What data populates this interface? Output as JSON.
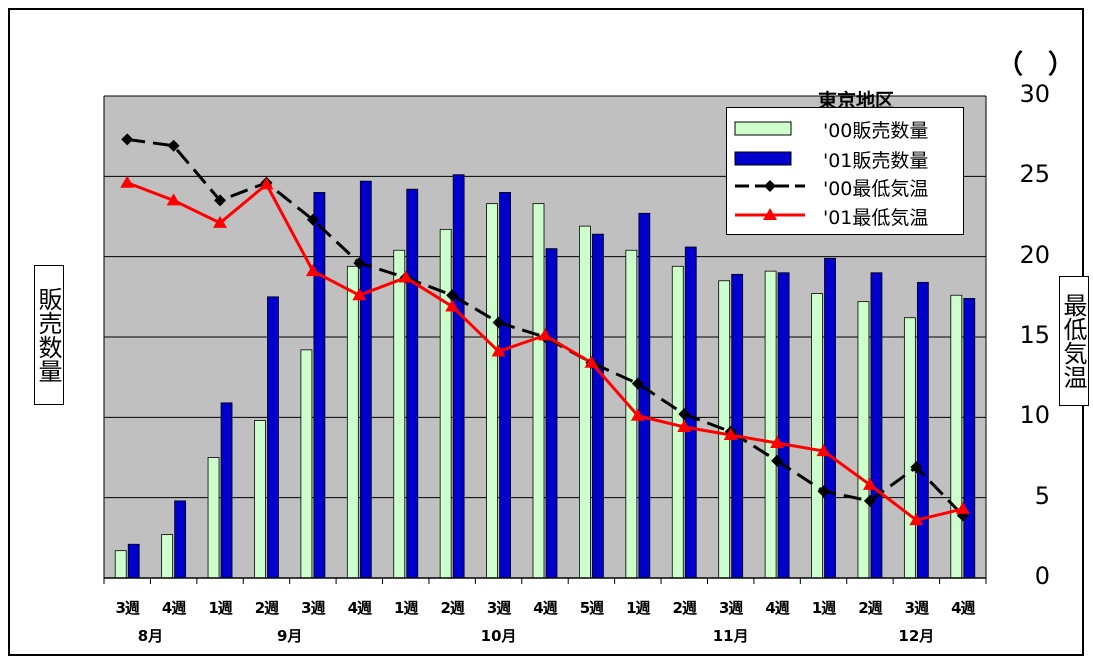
{
  "chart_data": {
    "type": "bar",
    "region_label": "東京地区",
    "unit_parens": "（ ）",
    "y_left_label": "販売数量",
    "y_right_label": "最低気温",
    "y_right_ticks": [
      "0",
      "5",
      "10",
      "15",
      "20",
      "25",
      "30"
    ],
    "ylim_right": [
      0,
      30
    ],
    "grid": true,
    "legend_position": "top-right",
    "categories": [
      "3週",
      "4週",
      "1週",
      "2週",
      "3週",
      "4週",
      "1週",
      "2週",
      "3週",
      "4週",
      "5週",
      "1週",
      "2週",
      "3週",
      "4週",
      "1週",
      "2週",
      "3週",
      "4週"
    ],
    "months": [
      {
        "label": "8月",
        "center_index": 0.5
      },
      {
        "label": "9月",
        "center_index": 3.5
      },
      {
        "label": "10月",
        "center_index": 8
      },
      {
        "label": "11月",
        "center_index": 13
      },
      {
        "label": "12月",
        "center_index": 17
      }
    ],
    "bar_scale_note": "",
    "series": [
      {
        "name": "'00販売数量",
        "kind": "bar",
        "color": "#ccffcc",
        "values": [
          1.7,
          2.7,
          7.5,
          9.8,
          14.2,
          19.4,
          20.4,
          21.7,
          23.3,
          23.3,
          21.9,
          20.4,
          19.4,
          18.5,
          19.1,
          17.7,
          17.2,
          16.2,
          17.6
        ]
      },
      {
        "name": "'01販売数量",
        "kind": "bar",
        "color": "#0000cc",
        "values": [
          2.1,
          4.8,
          10.9,
          17.5,
          24.0,
          24.7,
          24.2,
          25.1,
          24.0,
          20.5,
          21.4,
          22.7,
          20.6,
          18.9,
          19.0,
          19.9,
          19.0,
          18.4,
          17.4
        ]
      },
      {
        "name": "'00最低気温",
        "kind": "line",
        "color": "#000000",
        "marker": "diamond",
        "values": [
          27.3,
          26.9,
          23.5,
          24.6,
          22.3,
          19.6,
          18.7,
          17.6,
          15.9,
          15.0,
          13.4,
          12.1,
          10.2,
          9.1,
          7.3,
          5.4,
          4.8,
          6.9,
          3.9
        ]
      },
      {
        "name": "'01最低気温",
        "kind": "line",
        "color": "#ff0000",
        "marker": "triangle",
        "values": [
          24.6,
          23.5,
          22.1,
          24.5,
          19.1,
          17.6,
          18.7,
          16.9,
          14.1,
          15.1,
          13.4,
          10.1,
          9.4,
          8.9,
          8.4,
          7.9,
          5.8,
          3.6,
          4.3
        ]
      }
    ]
  }
}
